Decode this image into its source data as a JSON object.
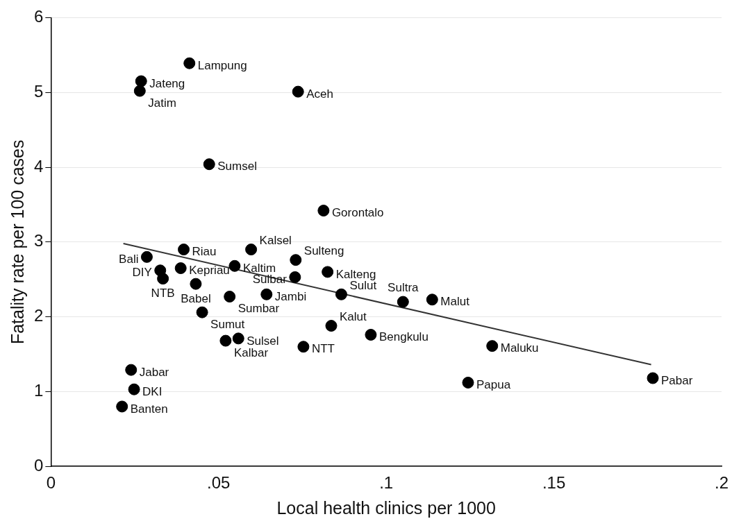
{
  "chart_data": {
    "type": "scatter",
    "xlabel": "Local health clinics per 1000",
    "ylabel": "Fatality rate per 100 cases",
    "xlim": [
      0,
      0.2
    ],
    "xticks": [
      {
        "value": 0,
        "label": "0"
      },
      {
        "value": 0.05,
        "label": ".05"
      },
      {
        "value": 0.1,
        "label": ".1"
      },
      {
        "value": 0.15,
        "label": ".15"
      },
      {
        "value": 0.2,
        "label": ".2"
      }
    ],
    "ylim": [
      0,
      6
    ],
    "yticks": [
      0,
      1,
      2,
      3,
      4,
      5,
      6
    ],
    "grid": "y",
    "marker": "circle",
    "series": [
      {
        "color": "#000000",
        "x": [
          0.0413,
          0.0269,
          0.0265,
          0.0737,
          0.0472,
          0.0813,
          0.0396,
          0.0597,
          0.0286,
          0.073,
          0.0326,
          0.0387,
          0.0548,
          0.0825,
          0.0728,
          0.0334,
          0.0432,
          0.0533,
          0.0643,
          0.0866,
          0.105,
          0.1137,
          0.0451,
          0.0836,
          0.0954,
          0.0559,
          0.0521,
          0.0753,
          0.1316,
          0.1244,
          0.1795,
          0.0239,
          0.0248,
          0.0212
        ],
        "values": [
          5.39,
          5.15,
          5.02,
          5.01,
          4.04,
          3.42,
          2.9,
          2.9,
          2.8,
          2.76,
          2.62,
          2.65,
          2.68,
          2.6,
          2.53,
          2.51,
          2.44,
          2.27,
          2.3,
          2.3,
          2.2,
          2.23,
          2.06,
          1.88,
          1.76,
          1.71,
          1.68,
          1.6,
          1.61,
          1.12,
          1.18,
          1.29,
          1.03,
          0.8
        ]
      },
      {
        "type": "line",
        "color": "#333333",
        "marker": "none",
        "line_style": "solid",
        "x": [
          0.0216,
          0.179
        ],
        "values": [
          2.98,
          1.36
        ]
      }
    ],
    "annotations": [
      {
        "text": "Lampung",
        "x": 0.0413,
        "y": 5.39
      },
      {
        "text": "Jateng",
        "x": 0.0269,
        "y": 5.15
      },
      {
        "text": "Jatim",
        "x": 0.0265,
        "y": 5.02
      },
      {
        "text": "Aceh",
        "x": 0.0737,
        "y": 5.01
      },
      {
        "text": "Sumsel",
        "x": 0.0472,
        "y": 4.04
      },
      {
        "text": "Gorontalo",
        "x": 0.0813,
        "y": 3.42
      },
      {
        "text": "Riau",
        "x": 0.0396,
        "y": 2.9
      },
      {
        "text": "Kalsel",
        "x": 0.0597,
        "y": 2.9
      },
      {
        "text": "Bali",
        "x": 0.0286,
        "y": 2.8
      },
      {
        "text": "Sulteng",
        "x": 0.073,
        "y": 2.76
      },
      {
        "text": "DIY",
        "x": 0.0326,
        "y": 2.62
      },
      {
        "text": "Kepriau",
        "x": 0.0387,
        "y": 2.65
      },
      {
        "text": "Kaltim",
        "x": 0.0548,
        "y": 2.68
      },
      {
        "text": "Kalteng",
        "x": 0.0825,
        "y": 2.6
      },
      {
        "text": "Sulbar",
        "x": 0.0728,
        "y": 2.53
      },
      {
        "text": "NTB",
        "x": 0.0334,
        "y": 2.51
      },
      {
        "text": "Babel",
        "x": 0.0432,
        "y": 2.44
      },
      {
        "text": "Sumbar",
        "x": 0.0533,
        "y": 2.27
      },
      {
        "text": "Jambi",
        "x": 0.0643,
        "y": 2.3
      },
      {
        "text": "Sulut",
        "x": 0.0866,
        "y": 2.3
      },
      {
        "text": "Sultra",
        "x": 0.105,
        "y": 2.2
      },
      {
        "text": "Malut",
        "x": 0.1137,
        "y": 2.23
      },
      {
        "text": "Sumut",
        "x": 0.0451,
        "y": 2.06
      },
      {
        "text": "Kalut",
        "x": 0.0836,
        "y": 1.88
      },
      {
        "text": "Bengkulu",
        "x": 0.0954,
        "y": 1.76
      },
      {
        "text": "Sulsel",
        "x": 0.0559,
        "y": 1.71
      },
      {
        "text": "Kalbar",
        "x": 0.0521,
        "y": 1.68
      },
      {
        "text": "NTT",
        "x": 0.0753,
        "y": 1.6
      },
      {
        "text": "Maluku",
        "x": 0.1316,
        "y": 1.61
      },
      {
        "text": "Papua",
        "x": 0.1244,
        "y": 1.12
      },
      {
        "text": "Pabar",
        "x": 0.1795,
        "y": 1.18
      },
      {
        "text": "Jabar",
        "x": 0.0239,
        "y": 1.29
      },
      {
        "text": "DKI",
        "x": 0.0248,
        "y": 1.03
      },
      {
        "text": "Banten",
        "x": 0.0212,
        "y": 0.8
      }
    ]
  }
}
